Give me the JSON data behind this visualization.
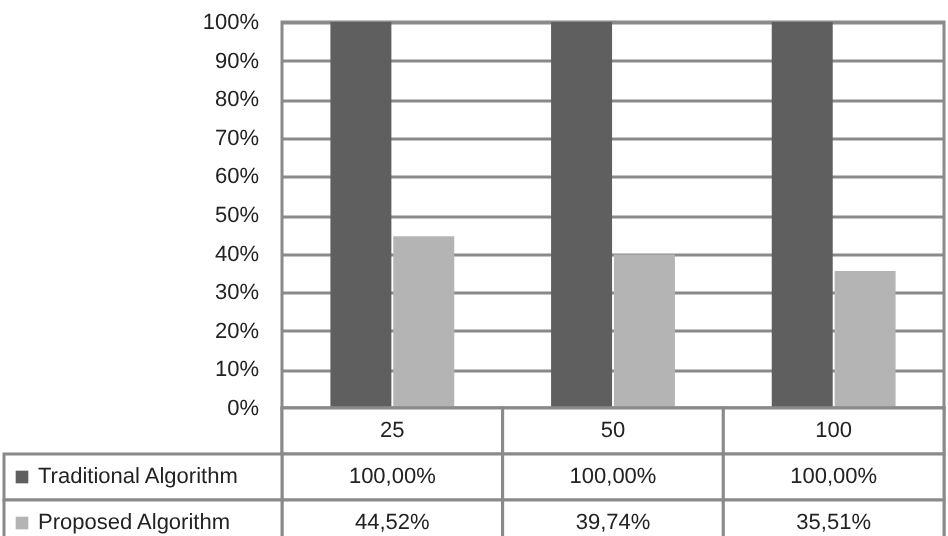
{
  "chart_data": {
    "type": "bar",
    "categories": [
      "25",
      "50",
      "100"
    ],
    "series": [
      {
        "name": "Traditional Algorithm",
        "color": "#5f5f5f",
        "values": [
          100,
          100,
          100
        ],
        "value_labels": [
          "100,00%",
          "100,00%",
          "100,00%"
        ]
      },
      {
        "name": "Proposed Algorithm",
        "color": "#b4b4b4",
        "values": [
          44.52,
          39.74,
          35.51
        ],
        "value_labels": [
          "44,52%",
          "39,74%",
          "35,51%"
        ]
      }
    ],
    "ylim": [
      0,
      100
    ],
    "yticks": [
      {
        "value": 0,
        "label": "0%"
      },
      {
        "value": 10,
        "label": "10%"
      },
      {
        "value": 20,
        "label": "20%"
      },
      {
        "value": 30,
        "label": "30%"
      },
      {
        "value": 40,
        "label": "40%"
      },
      {
        "value": 50,
        "label": "50%"
      },
      {
        "value": 60,
        "label": "60%"
      },
      {
        "value": 70,
        "label": "70%"
      },
      {
        "value": 80,
        "label": "80%"
      },
      {
        "value": 90,
        "label": "90%"
      },
      {
        "value": 100,
        "label": "100%"
      }
    ],
    "grid": "y",
    "legend": "bottom"
  }
}
